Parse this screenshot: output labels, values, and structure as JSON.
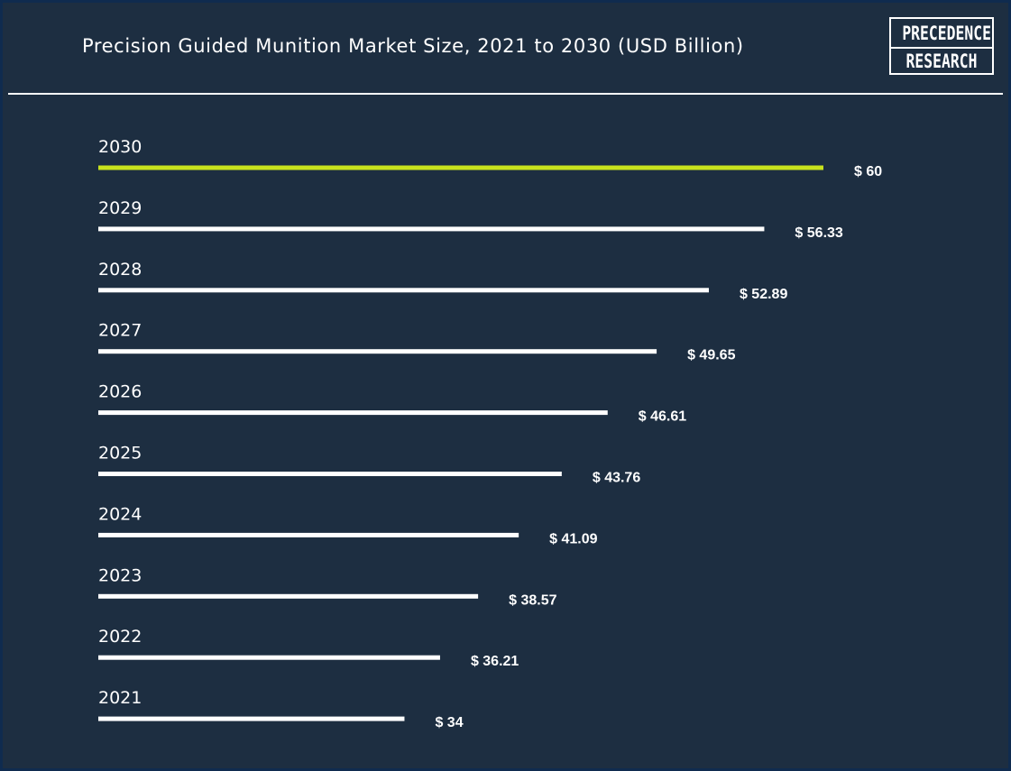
{
  "header": {
    "title": "Precision Guided Munition Market Size, 2021 to 2030 (USD Billion)",
    "logo_line1": "PRECEDENCE",
    "logo_line2": "RESEARCH"
  },
  "colors": {
    "background": "#1d2e41",
    "bar_default": "#ffffff",
    "bar_highlight": "#c8e21d",
    "text": "#ffffff"
  },
  "chart_data": {
    "type": "bar",
    "orientation": "horizontal",
    "title": "Precision Guided Munition Market Size, 2021 to 2030 (USD Billion)",
    "categories": [
      "2030",
      "2029",
      "2028",
      "2027",
      "2026",
      "2025",
      "2024",
      "2023",
      "2022",
      "2021"
    ],
    "values": [
      60,
      56.33,
      52.89,
      49.65,
      46.61,
      43.76,
      41.09,
      38.57,
      36.21,
      34
    ],
    "value_labels": [
      "$ 60",
      "$ 56.33",
      "$ 52.89",
      "$ 49.65",
      "$ 46.61",
      "$ 43.76",
      "$ 41.09",
      "$ 38.57",
      "$ 36.21",
      "$ 34"
    ],
    "highlight_category": "2030",
    "xlim": [
      15,
      60
    ],
    "grid": false,
    "legend": "none"
  }
}
